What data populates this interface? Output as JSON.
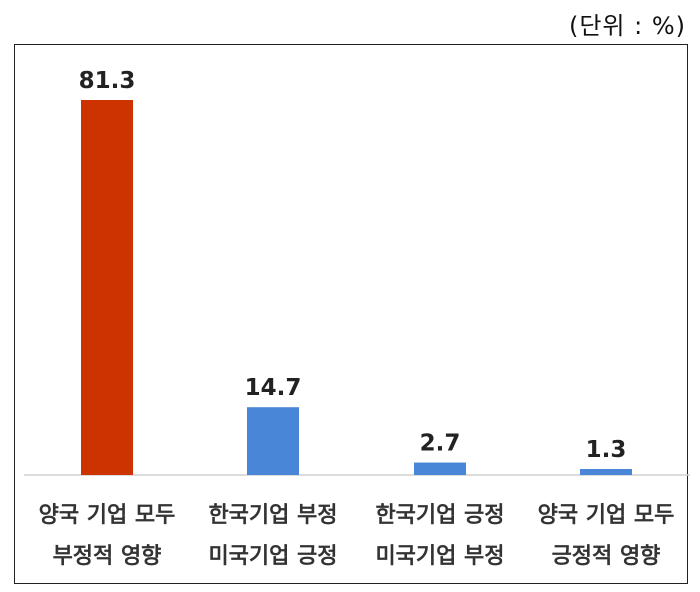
{
  "unit_label": "(단위 : %)",
  "colors": {
    "highlight": "#CC3300",
    "default": "#4A86D8",
    "axis": "#d0d0d0"
  },
  "chart_data": {
    "type": "bar",
    "categories": [
      [
        "양국 기업 모두",
        "부정적 영향"
      ],
      [
        "한국기업 부정",
        "미국기업 긍정"
      ],
      [
        "한국기업 긍정",
        "미국기업 부정"
      ],
      [
        "양국 기업 모두",
        "긍정적 영향"
      ]
    ],
    "values": [
      81.3,
      14.7,
      2.7,
      1.3
    ],
    "value_labels": [
      "81.3",
      "14.7",
      "2.7",
      "1.3"
    ],
    "ylim": [
      0,
      100
    ],
    "grid": false,
    "legend": "none"
  }
}
